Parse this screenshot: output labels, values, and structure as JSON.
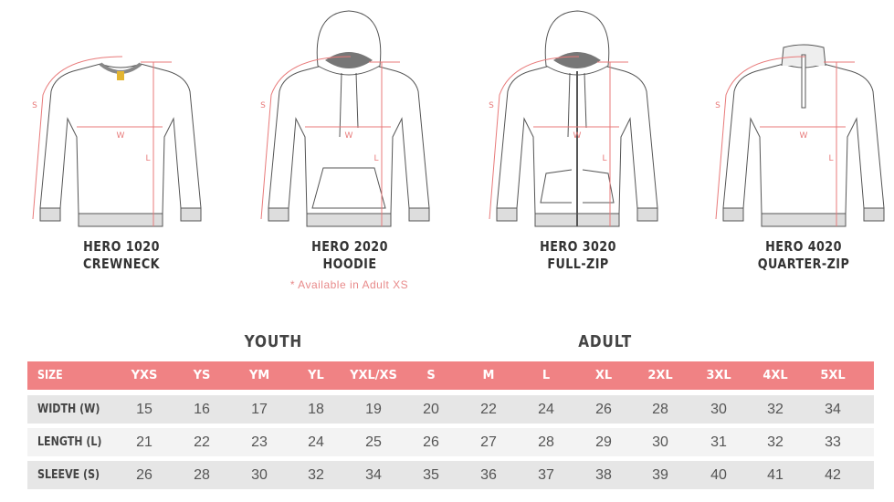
{
  "garments": [
    {
      "model": "HERO 1020",
      "style": "CREWNECK",
      "type": "crewneck"
    },
    {
      "model": "HERO 2020",
      "style": "HOODIE",
      "type": "hoodie",
      "note": "* Available in Adult XS"
    },
    {
      "model": "HERO 3020",
      "style": "FULL-ZIP",
      "type": "fullzip"
    },
    {
      "model": "HERO 4020",
      "style": "QUARTER-ZIP",
      "type": "quarterzip"
    }
  ],
  "measure_labels": {
    "sleeve": "S",
    "width": "W",
    "length": "L"
  },
  "groups": {
    "youth": "YOUTH",
    "adult": "ADULT"
  },
  "table": {
    "header": [
      "SIZE",
      "YXS",
      "YS",
      "YM",
      "YL",
      "YXL/XS",
      "S",
      "M",
      "L",
      "XL",
      "2XL",
      "3XL",
      "4XL",
      "5XL"
    ],
    "rows": [
      {
        "label": "WIDTH (W)",
        "values": [
          "15",
          "16",
          "17",
          "18",
          "19",
          "20",
          "22",
          "24",
          "26",
          "28",
          "30",
          "32",
          "34"
        ]
      },
      {
        "label": "LENGTH (L)",
        "values": [
          "21",
          "22",
          "23",
          "24",
          "25",
          "26",
          "27",
          "28",
          "29",
          "30",
          "31",
          "32",
          "33"
        ]
      },
      {
        "label": "SLEEVE (S)",
        "values": [
          "26",
          "28",
          "30",
          "32",
          "34",
          "35",
          "36",
          "37",
          "38",
          "39",
          "40",
          "41",
          "42"
        ]
      }
    ]
  },
  "colors": {
    "accent": "#f08284",
    "measure": "#e87a7a",
    "outline": "#555555",
    "row_dark": "#e6e6e6",
    "row_light": "#f3f3f3"
  }
}
